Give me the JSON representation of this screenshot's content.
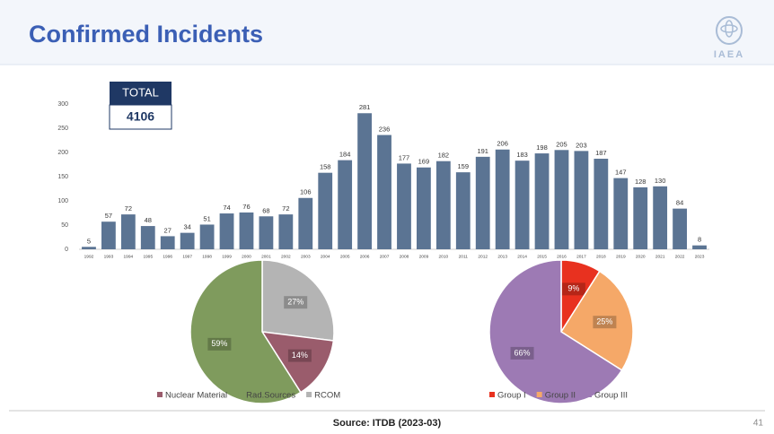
{
  "slide": {
    "title": "Confirmed Incidents",
    "logo_text": "IAEA",
    "total_label": "TOTAL",
    "total_value": "4106",
    "source": "Source: ITDB (2023-03)",
    "page_number": "41"
  },
  "chart_data": [
    {
      "type": "bar",
      "categories": [
        "1992",
        "1993",
        "1994",
        "1995",
        "1996",
        "1997",
        "1998",
        "1999",
        "2000",
        "2001",
        "2002",
        "2003",
        "2004",
        "2005",
        "2006",
        "2007",
        "2008",
        "2009",
        "2010",
        "2011",
        "2012",
        "2013",
        "2014",
        "2015",
        "2016",
        "2017",
        "2018",
        "2019",
        "2020",
        "2021",
        "2022",
        "2023"
      ],
      "values": [
        5,
        57,
        72,
        48,
        27,
        34,
        51,
        74,
        76,
        68,
        72,
        106,
        158,
        184,
        281,
        236,
        177,
        169,
        182,
        159,
        191,
        206,
        183,
        198,
        205,
        203,
        187,
        147,
        128,
        130,
        84,
        8
      ],
      "color": "#5b7493",
      "ylim": [
        0,
        300
      ],
      "yticks": [
        0,
        50,
        100,
        150,
        200,
        250,
        300
      ]
    },
    {
      "type": "pie",
      "categories": [
        "Nuclear Material",
        "Rad.Sources",
        "RCOM"
      ],
      "values": [
        14,
        59,
        27
      ],
      "value_labels": [
        "14%",
        "59%",
        "27%"
      ],
      "colors": [
        "#9a5c6c",
        "#7f9b5d",
        "#b4b4b4"
      ]
    },
    {
      "type": "pie",
      "categories": [
        "Group I",
        "Group II",
        "Group III"
      ],
      "values": [
        9,
        25,
        66
      ],
      "value_labels": [
        "9%",
        "25%",
        "66%"
      ],
      "colors": [
        "#e8311f",
        "#f5a868",
        "#9d7ab4"
      ]
    }
  ]
}
